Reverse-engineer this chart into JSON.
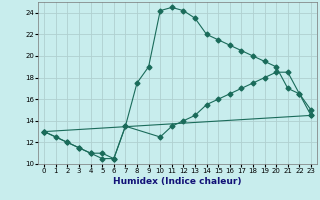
{
  "xlabel": "Humidex (Indice chaleur)",
  "bg_color": "#c8eded",
  "line_color": "#1a6b5a",
  "grid_color": "#b0d0d0",
  "xlim": [
    -0.5,
    23.5
  ],
  "ylim": [
    10,
    25
  ],
  "xticks": [
    0,
    1,
    2,
    3,
    4,
    5,
    6,
    7,
    8,
    9,
    10,
    11,
    12,
    13,
    14,
    15,
    16,
    17,
    18,
    19,
    20,
    21,
    22,
    23
  ],
  "yticks": [
    10,
    12,
    14,
    16,
    18,
    20,
    22,
    24
  ],
  "line1_x": [
    0,
    1,
    2,
    3,
    4,
    5,
    6,
    7,
    8,
    9,
    10,
    11,
    12,
    13,
    14,
    15,
    16,
    17,
    18,
    19,
    20,
    21,
    22,
    23
  ],
  "line1_y": [
    13,
    12.5,
    12,
    11.5,
    11,
    10.5,
    10.5,
    13.5,
    17.5,
    19.0,
    24.2,
    24.5,
    24.2,
    23.5,
    22.0,
    21.5,
    21.0,
    20.5,
    20.0,
    19.5,
    19.0,
    17.0,
    16.5,
    15.0
  ],
  "line2_x": [
    0,
    2,
    3,
    4,
    5,
    6,
    7,
    10,
    11,
    12,
    13,
    14,
    15,
    16,
    17,
    18,
    19,
    20,
    21,
    22,
    23
  ],
  "line2_y": [
    13,
    12,
    11.5,
    11.0,
    11.0,
    10.5,
    13.5,
    12.5,
    13.5,
    14.0,
    14.5,
    15.5,
    16.0,
    16.5,
    17.0,
    17.5,
    18.0,
    18.5,
    18.5,
    16.5,
    14.5
  ],
  "line3_x": [
    0,
    23
  ],
  "line3_y": [
    13,
    14.5
  ]
}
